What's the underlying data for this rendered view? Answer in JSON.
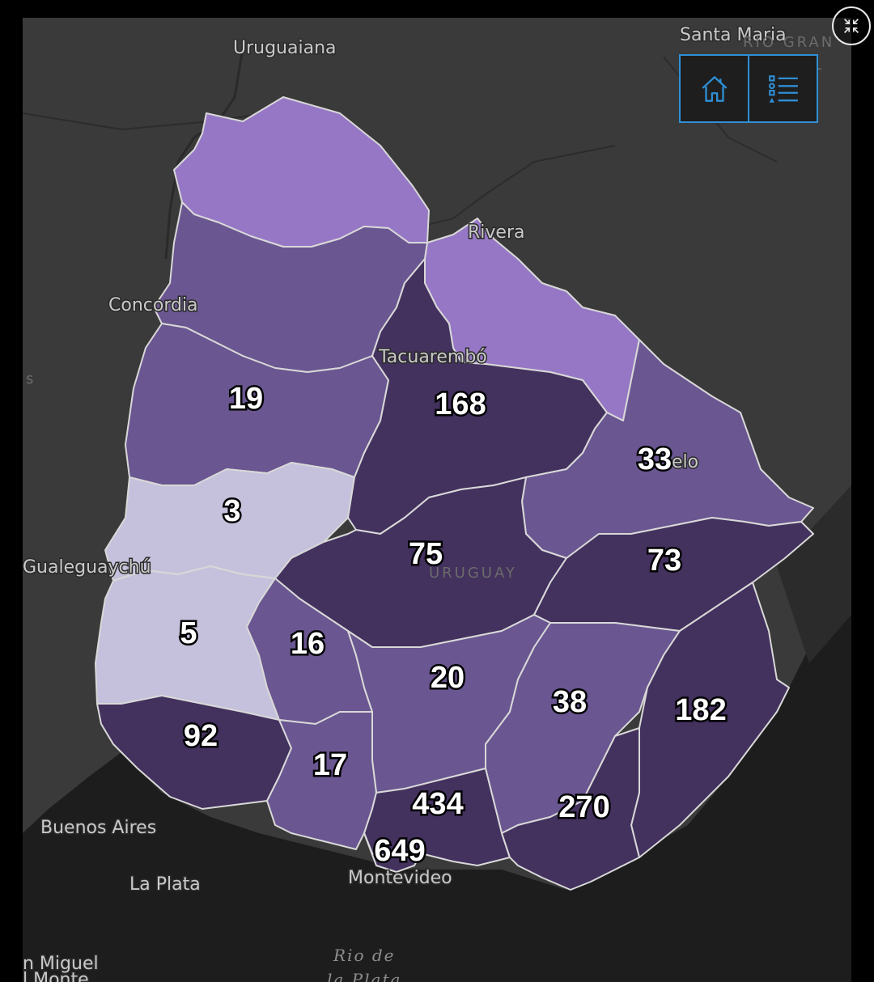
{
  "map": {
    "country_label": "URUGUAY",
    "places": {
      "uruguaiana": "Uruguaiana",
      "santa_maria": "Santa Maria",
      "rio_grande_1": "RIO GRAN",
      "rio_grande_2": "U L",
      "rivera": "Rivera",
      "concordia": "Concordia",
      "tacuarembo": "Tacuarembó",
      "melo": "elo",
      "gualeguaychu": "Gualeguaychú",
      "buenos_aires": "Buenos Aires",
      "la_plata": "La Plata",
      "montevideo": "Montevideo",
      "rio_de": "Rio de",
      "rio_de_2": "la Plata",
      "san_miguel": "n Miguel",
      "del_monte": "l Monte",
      "left_edge": "s"
    },
    "departments": [
      {
        "id": "artigas",
        "value": null,
        "color": "#9677c5"
      },
      {
        "id": "salto",
        "value": null,
        "color": "#6a5690"
      },
      {
        "id": "paysandu",
        "value": "19",
        "color": "#6a5690"
      },
      {
        "id": "rio-negro",
        "value": "3",
        "color": "#c5c1dc"
      },
      {
        "id": "soriano",
        "value": "5",
        "color": "#c5c1dc"
      },
      {
        "id": "colonia",
        "value": "92",
        "color": "#43315e"
      },
      {
        "id": "rivera",
        "value": null,
        "color": "#9677c5"
      },
      {
        "id": "tacuarembo",
        "value": "168",
        "color": "#43315e"
      },
      {
        "id": "cerro-largo",
        "value": "33",
        "color": "#6a5690"
      },
      {
        "id": "durazno",
        "value": "75",
        "color": "#43315e"
      },
      {
        "id": "treinta-y-tres",
        "value": "73",
        "color": "#43315e"
      },
      {
        "id": "flores",
        "value": "16",
        "color": "#6a5690"
      },
      {
        "id": "florida",
        "value": "20",
        "color": "#6a5690"
      },
      {
        "id": "lavalleja",
        "value": "38",
        "color": "#6a5690"
      },
      {
        "id": "rocha",
        "value": "182",
        "color": "#43315e"
      },
      {
        "id": "san-jose",
        "value": "17",
        "color": "#6a5690"
      },
      {
        "id": "canelones",
        "value": "434",
        "color": "#43315e"
      },
      {
        "id": "maldonado",
        "value": "270",
        "color": "#43315e"
      },
      {
        "id": "montevideo",
        "value": "649",
        "color": "#43315e"
      }
    ]
  },
  "widgets": {
    "home_icon": "home-icon",
    "legend_icon": "legend-list-icon",
    "fullscreen_icon": "exit-fullscreen-icon",
    "accent": "#2f8fd6"
  }
}
